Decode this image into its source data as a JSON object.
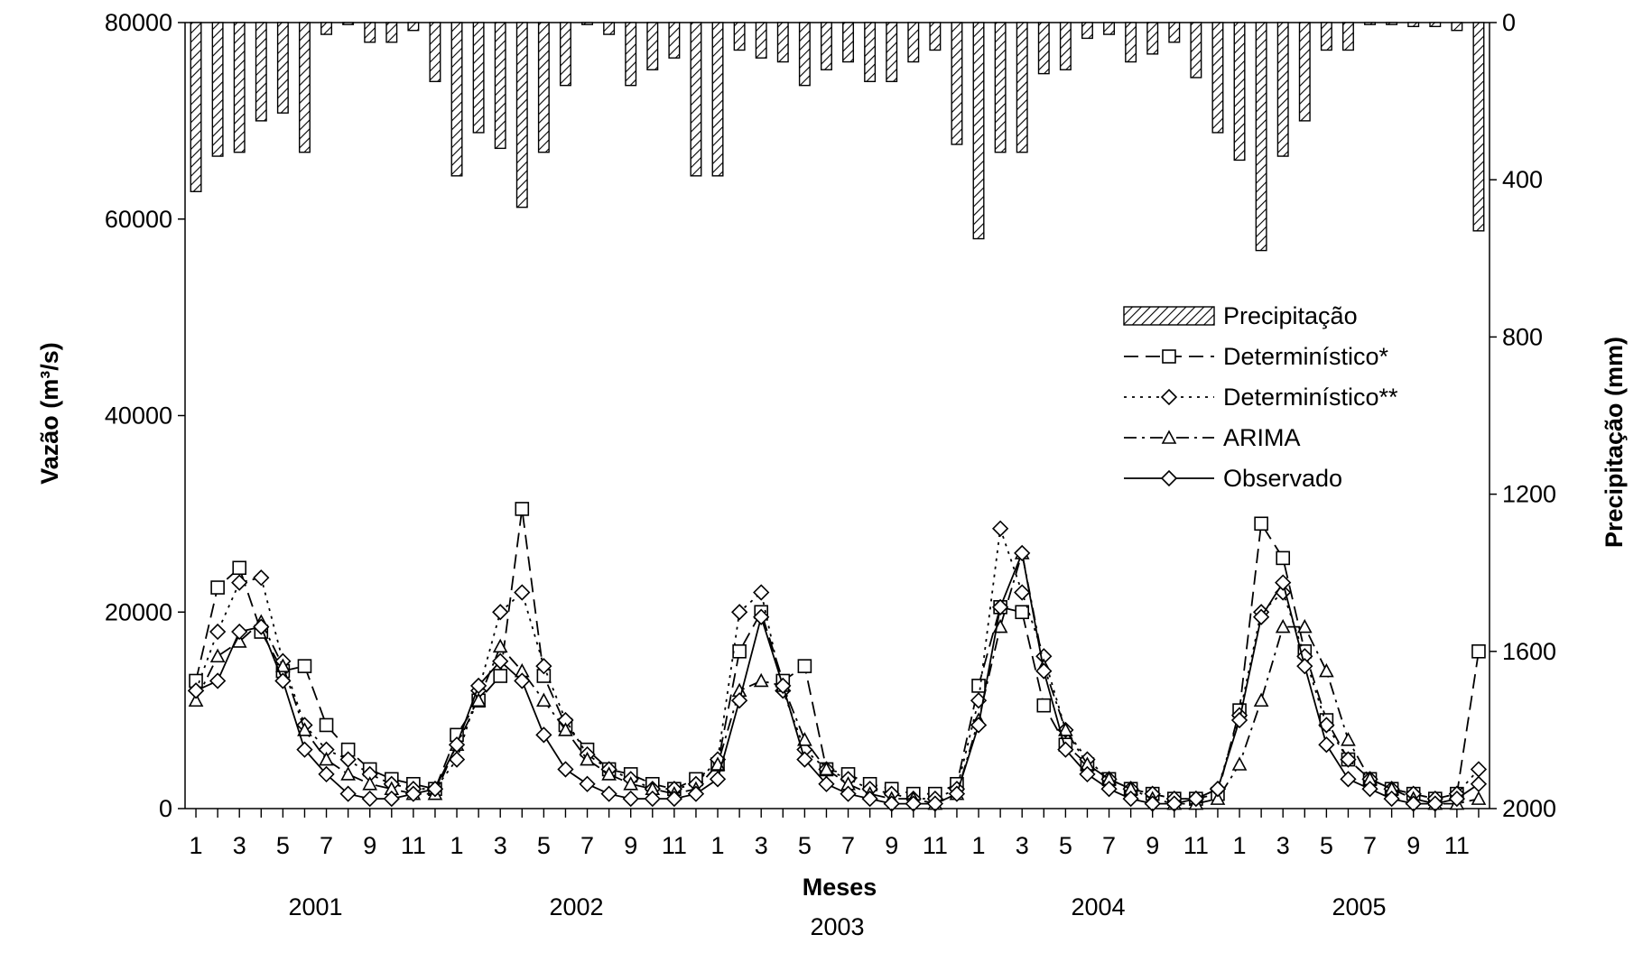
{
  "chart_data": {
    "type": "bar",
    "xlabel": "Meses",
    "ylabel": "Vazão (m³/s)",
    "y2label": "Precipitação (mm)",
    "ylim": [
      0,
      80000
    ],
    "y2lim_inverted": [
      0,
      2000
    ],
    "y_ticks": [
      "80000",
      "60000",
      "40000",
      "20000",
      "0"
    ],
    "y2_ticks": [
      "0",
      "400",
      "800",
      "1200",
      "1600",
      "2000"
    ],
    "month_tick_labels": [
      "1",
      "3",
      "5",
      "7",
      "9",
      "11"
    ],
    "years": [
      "2001",
      "2002",
      "2003",
      "2004",
      "2005"
    ],
    "categories": [
      "2001-1",
      "2001-2",
      "2001-3",
      "2001-4",
      "2001-5",
      "2001-6",
      "2001-7",
      "2001-8",
      "2001-9",
      "2001-10",
      "2001-11",
      "2001-12",
      "2002-1",
      "2002-2",
      "2002-3",
      "2002-4",
      "2002-5",
      "2002-6",
      "2002-7",
      "2002-8",
      "2002-9",
      "2002-10",
      "2002-11",
      "2002-12",
      "2003-1",
      "2003-2",
      "2003-3",
      "2003-4",
      "2003-5",
      "2003-6",
      "2003-7",
      "2003-8",
      "2003-9",
      "2003-10",
      "2003-11",
      "2003-12",
      "2004-1",
      "2004-2",
      "2004-3",
      "2004-4",
      "2004-5",
      "2004-6",
      "2004-7",
      "2004-8",
      "2004-9",
      "2004-10",
      "2004-11",
      "2004-12",
      "2005-1",
      "2005-2",
      "2005-3",
      "2005-4",
      "2005-5",
      "2005-6",
      "2005-7",
      "2005-8",
      "2005-9",
      "2005-10",
      "2005-11",
      "2005-12"
    ],
    "series": [
      {
        "name": "Precipitação",
        "type": "bar",
        "axis": "right",
        "values": [
          430,
          340,
          330,
          250,
          230,
          330,
          30,
          5,
          50,
          50,
          20,
          150,
          390,
          280,
          320,
          470,
          330,
          160,
          5,
          30,
          160,
          120,
          90,
          390,
          390,
          70,
          90,
          100,
          160,
          120,
          100,
          150,
          150,
          100,
          70,
          310,
          550,
          330,
          330,
          130,
          120,
          40,
          30,
          100,
          80,
          50,
          140,
          280,
          350,
          580,
          340,
          250,
          70,
          70,
          5,
          5,
          10,
          10,
          20,
          530
        ]
      },
      {
        "name": "Determinístico*",
        "type": "line",
        "axis": "left",
        "values": [
          13000,
          22500,
          24500,
          18000,
          14000,
          14500,
          8500,
          6000,
          4000,
          3000,
          2500,
          2000,
          7500,
          11000,
          13500,
          30500,
          13500,
          8500,
          6000,
          4000,
          3500,
          2500,
          2000,
          3000,
          4500,
          16000,
          20000,
          13000,
          14500,
          4000,
          3500,
          2500,
          2000,
          1500,
          1500,
          2500,
          12500,
          20500,
          20000,
          10500,
          6500,
          4500,
          3000,
          2000,
          1500,
          1000,
          1000,
          1500,
          10000,
          29000,
          25500,
          16000,
          9000,
          5000,
          3000,
          2000,
          1500,
          1000,
          1500,
          16000
        ]
      },
      {
        "name": "Determinístico**",
        "type": "line",
        "axis": "left",
        "values": [
          12000,
          18000,
          23000,
          23500,
          15000,
          8500,
          6000,
          5000,
          3500,
          2500,
          2000,
          2000,
          5000,
          12000,
          20000,
          22000,
          14500,
          9000,
          5500,
          4000,
          3000,
          2000,
          2000,
          2500,
          5000,
          20000,
          22000,
          12000,
          6000,
          4000,
          3000,
          2000,
          1500,
          1000,
          1000,
          2000,
          11000,
          28500,
          22000,
          15500,
          8000,
          5000,
          3000,
          2000,
          1500,
          1000,
          1000,
          2000,
          9500,
          20000,
          22000,
          15500,
          8500,
          5000,
          3000,
          2000,
          1500,
          1000,
          1500,
          4000
        ]
      },
      {
        "name": "ARIMA",
        "type": "line",
        "axis": "left",
        "values": [
          11000,
          15500,
          17000,
          19000,
          14500,
          8000,
          5000,
          3500,
          2500,
          2000,
          1500,
          1500,
          6500,
          11000,
          16500,
          14000,
          11000,
          8000,
          5000,
          3500,
          2500,
          2000,
          1500,
          2000,
          4500,
          12000,
          13000,
          12500,
          7000,
          4000,
          2500,
          1500,
          1000,
          1000,
          500,
          1500,
          9000,
          18500,
          26000,
          14500,
          8000,
          4500,
          3000,
          2000,
          1000,
          500,
          500,
          1000,
          4500,
          11000,
          18500,
          18500,
          14000,
          7000,
          3000,
          2000,
          1000,
          500,
          500,
          1000
        ]
      },
      {
        "name": "Observado",
        "type": "line",
        "axis": "left",
        "values": [
          12000,
          13000,
          18000,
          18500,
          13000,
          6000,
          3500,
          1500,
          1000,
          1000,
          1500,
          2000,
          6500,
          12500,
          15000,
          13000,
          7500,
          4000,
          2500,
          1500,
          1000,
          1000,
          1000,
          1500,
          3000,
          11000,
          19500,
          12500,
          5000,
          2500,
          1500,
          1000,
          500,
          500,
          500,
          1500,
          8500,
          20500,
          26000,
          14000,
          6000,
          3500,
          2000,
          1000,
          500,
          500,
          1000,
          2000,
          9000,
          19500,
          23000,
          14500,
          6500,
          3000,
          2000,
          1000,
          500,
          500,
          1000,
          2500
        ]
      }
    ],
    "legend_position": "right-center"
  }
}
